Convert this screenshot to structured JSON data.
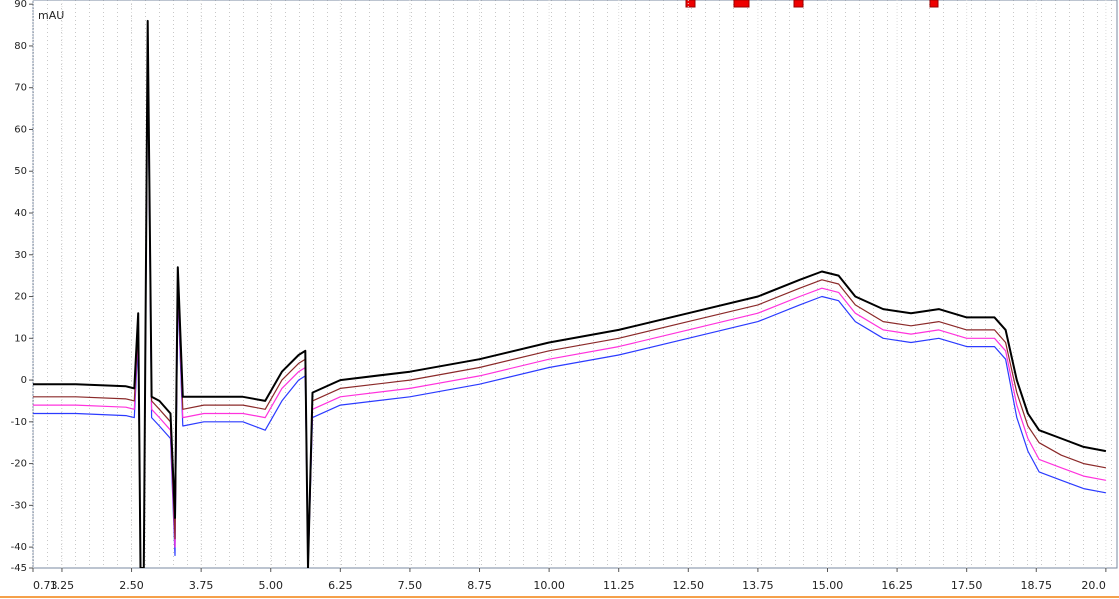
{
  "chart_data": {
    "type": "line",
    "y_label": "mAU",
    "x": [
      0.73,
      1.5,
      2.4,
      2.55,
      2.62,
      2.66,
      2.72,
      2.79,
      2.86,
      3.0,
      3.2,
      3.28,
      3.33,
      3.42,
      3.8,
      4.5,
      4.9,
      5.2,
      5.5,
      5.62,
      5.67,
      5.75,
      6.25,
      7.5,
      8.75,
      10,
      11.25,
      12.5,
      13.75,
      14.5,
      14.9,
      15.2,
      15.5,
      16,
      16.5,
      17,
      17.5,
      18,
      18.2,
      18.4,
      18.6,
      18.8,
      19.2,
      19.6,
      20
    ],
    "series": [
      {
        "color": "#2b3bff",
        "values": [
          -8,
          -8,
          -8.5,
          -9,
          10,
          -45,
          -45,
          80,
          -9,
          -11,
          -14,
          -42,
          21,
          -11,
          -10,
          -10,
          -12,
          -5,
          0,
          1,
          -45,
          -9,
          -6,
          -4,
          -1,
          3,
          6,
          10,
          14,
          18,
          20,
          19,
          14,
          10,
          9,
          10,
          8,
          8,
          5,
          -9,
          -17,
          -22,
          -24,
          -26,
          -27
        ]
      },
      {
        "color": "#ff33dd",
        "values": [
          -6,
          -6,
          -6.5,
          -7,
          12,
          -45,
          -45,
          82,
          -7,
          -9,
          -12,
          -40,
          23,
          -9,
          -8,
          -8,
          -9,
          -2,
          2,
          3,
          -45,
          -7,
          -4,
          -2,
          1,
          5,
          8,
          12,
          16,
          20,
          22,
          21,
          16,
          12,
          11,
          12,
          10,
          10,
          7,
          -6,
          -14,
          -19,
          -21,
          -23,
          -24
        ]
      },
      {
        "color": "#8b2a2a",
        "values": [
          -4,
          -4,
          -4.5,
          -5,
          14,
          -45,
          -45,
          84,
          -5,
          -7,
          -10,
          -38,
          25,
          -7,
          -6,
          -6,
          -7,
          0,
          4,
          5,
          -45,
          -5,
          -2,
          0,
          3,
          7,
          10,
          14,
          18,
          22,
          24,
          23,
          18,
          14,
          13,
          14,
          12,
          12,
          9,
          -3,
          -11,
          -15,
          -18,
          -20,
          -21
        ]
      },
      {
        "color": "#000000",
        "values": [
          -1,
          -1,
          -1.5,
          -2,
          16,
          -45,
          -45,
          86,
          -4,
          -5,
          -8,
          -33,
          27,
          -4,
          -4,
          -4,
          -5,
          2,
          6,
          7,
          -45,
          -3,
          0,
          2,
          5,
          9,
          12,
          16,
          20,
          24,
          26,
          25,
          20,
          17,
          16,
          17,
          15,
          15,
          12,
          0,
          -8,
          -12,
          -14,
          -16,
          -17
        ]
      }
    ],
    "xlim": [
      0.73,
      20.2
    ],
    "xticks": [
      0.73,
      1.25,
      {
        "value": 2.5,
        "label": "2.50"
      },
      3.75,
      {
        "value": 5,
        "label": "5.00"
      },
      6.25,
      {
        "value": 7.5,
        "label": "7.50"
      },
      8.75,
      {
        "value": 10,
        "label": "10.00"
      },
      11.25,
      {
        "value": 12.5,
        "label": "12.50"
      },
      13.75,
      {
        "value": 15,
        "label": "15.00"
      },
      16.25,
      {
        "value": 17.5,
        "label": "17.50"
      },
      18.75,
      {
        "value": 20,
        "label": "20.0"
      }
    ],
    "ylim": [
      -45,
      91
    ],
    "yticks": [
      -45,
      -40,
      -30,
      -20,
      -10,
      0,
      10,
      20,
      30,
      40,
      50,
      60,
      70,
      80,
      90
    ],
    "grid": true
  }
}
